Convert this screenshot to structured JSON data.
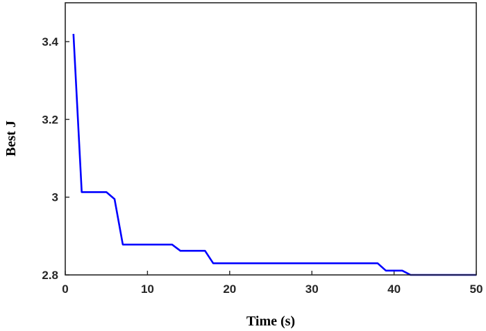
{
  "chart_data": {
    "type": "line",
    "title": "",
    "xlabel": "Time (s)",
    "ylabel": "Best J",
    "xlim": [
      0,
      50
    ],
    "ylim": [
      2.8,
      3.5
    ],
    "xticks": [
      0,
      10,
      20,
      30,
      40,
      50
    ],
    "xtick_labels": [
      "0",
      "10",
      "20",
      "30",
      "40",
      "50"
    ],
    "yticks": [
      2.8,
      3.0,
      3.2,
      3.4
    ],
    "ytick_labels": [
      "2.8",
      "3",
      "3.2",
      "3.4"
    ],
    "grid": false,
    "legend": "none",
    "series": [
      {
        "color": "#0000ff",
        "x": [
          1,
          2,
          5,
          6,
          7,
          13,
          14,
          17,
          18,
          38,
          39,
          41,
          42,
          50
        ],
        "y": [
          3.42,
          3.013,
          3.013,
          2.995,
          2.878,
          2.878,
          2.862,
          2.862,
          2.83,
          2.83,
          2.811,
          2.811,
          2.8,
          2.8
        ]
      }
    ]
  }
}
